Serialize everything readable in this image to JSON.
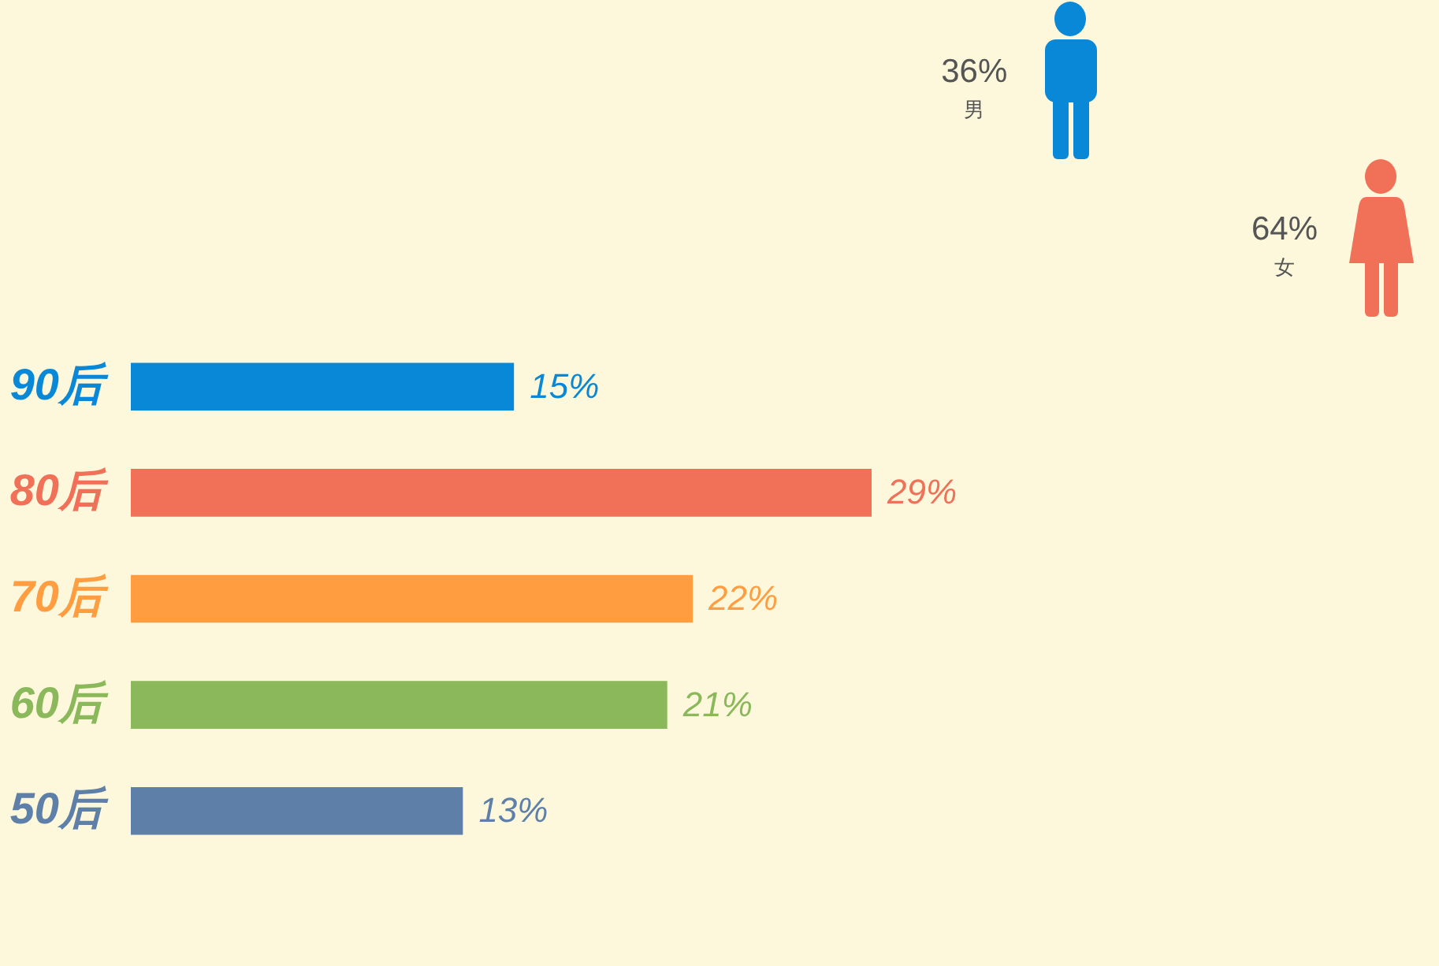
{
  "chart_data": [
    {
      "type": "bar",
      "orientation": "horizontal",
      "categories": [
        "90后",
        "80后",
        "70后",
        "60后",
        "50后"
      ],
      "values": [
        15,
        29,
        22,
        21,
        13
      ],
      "colors": [
        "#0a88d8",
        "#f07058",
        "#ff9d40",
        "#8ab85a",
        "#5e80a8"
      ],
      "value_labels": [
        "15%",
        "29%",
        "22%",
        "21%",
        "13%"
      ],
      "tick_labels": "y"
    },
    {
      "type": "other",
      "categories": [
        "男",
        "女"
      ],
      "values": [
        36,
        64
      ],
      "colors": [
        "#0a88d8",
        "#f07058"
      ],
      "value_labels": [
        "36%",
        "64%"
      ]
    }
  ]
}
